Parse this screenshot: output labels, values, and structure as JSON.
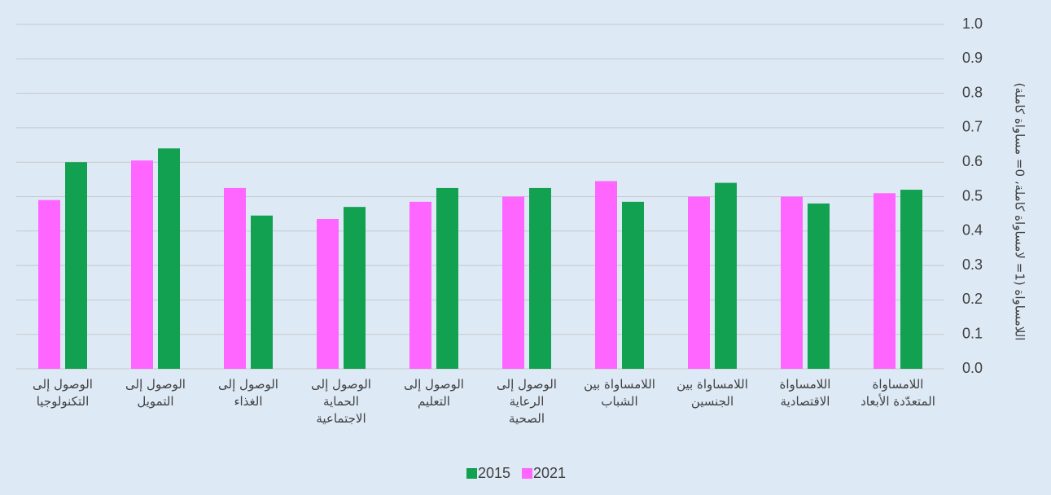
{
  "chart_data": {
    "type": "bar",
    "y_axis_label": "اللامساواة (1= لامساواة كاملة، 0= مساواة كاملة)",
    "categories": [
      "الوصول إلى\nالتكنولوجيا",
      "الوصول إلى\nالتمويل",
      "الوصول إلى\nالغذاء",
      "الوصول إلى\nالحماية\nالاجتماعية",
      "الوصول إلى\nالتعليم",
      "الوصول إلى\nالرعاية\nالصحية",
      "اللامساواة بين\nالشباب",
      "اللامساواة بين\nالجنسين",
      "اللامساواة\nالاقتصادية",
      "اللامساواة\nالمتعدّدة الأبعاد"
    ],
    "series": [
      {
        "name": "2015",
        "color": "#12a150",
        "values": [
          0.6,
          0.64,
          0.445,
          0.47,
          0.525,
          0.525,
          0.485,
          0.54,
          0.48,
          0.52
        ]
      },
      {
        "name": "2021",
        "color": "#ff66ff",
        "values": [
          0.49,
          0.605,
          0.525,
          0.435,
          0.485,
          0.5,
          0.545,
          0.5,
          0.5,
          0.51
        ]
      }
    ],
    "ylim": [
      0,
      1
    ],
    "yticks": [
      {
        "value": 0,
        "label": "0.0"
      },
      0.1,
      0.2,
      0.3,
      0.4,
      0.5,
      0.6,
      0.7,
      0.8,
      0.9,
      {
        "value": 1,
        "label": "1.0"
      }
    ],
    "grid": true
  }
}
